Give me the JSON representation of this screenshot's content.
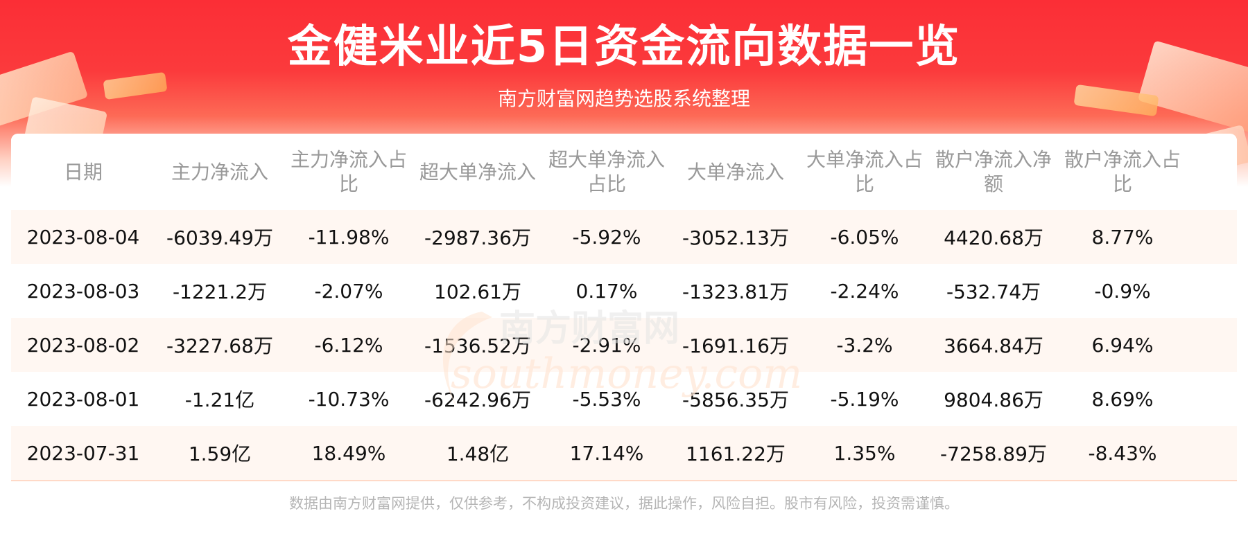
{
  "header": {
    "title": "金健米业近5日资金流向数据一览",
    "subtitle": "南方财富网趋势选股系统整理"
  },
  "table": {
    "columns": [
      "日期",
      "主力净流入",
      "主力净流入占比",
      "超大单净流入",
      "超大单净流入占比",
      "大单净流入",
      "大单净流入占比",
      "散户净流入净额",
      "散户净流入占比"
    ],
    "rows": [
      [
        "2023-08-04",
        "-6039.49万",
        "-11.98%",
        "-2987.36万",
        "-5.92%",
        "-3052.13万",
        "-6.05%",
        "4420.68万",
        "8.77%"
      ],
      [
        "2023-08-03",
        "-1221.2万",
        "-2.07%",
        "102.61万",
        "0.17%",
        "-1323.81万",
        "-2.24%",
        "-532.74万",
        "-0.9%"
      ],
      [
        "2023-08-02",
        "-3227.68万",
        "-6.12%",
        "-1536.52万",
        "-2.91%",
        "-1691.16万",
        "-3.2%",
        "3664.84万",
        "6.94%"
      ],
      [
        "2023-08-01",
        "-1.21亿",
        "-10.73%",
        "-6242.96万",
        "-5.53%",
        "-5856.35万",
        "-5.19%",
        "9804.86万",
        "8.69%"
      ],
      [
        "2023-07-31",
        "1.59亿",
        "18.49%",
        "1.48亿",
        "17.14%",
        "1161.22万",
        "1.35%",
        "-7258.89万",
        "-8.43%"
      ]
    ]
  },
  "watermark": {
    "name": "南方财富网",
    "domain": "southmoney.com"
  },
  "footer": {
    "disclaimer": "数据由南方财富网提供，仅供参考，不构成投资建议，据此操作，风险自担。股市有风险，投资需谨慎。"
  },
  "colors": {
    "banner_red": "#fb2e36",
    "row_alt_bg": "#fff7f2",
    "header_text": "#999999",
    "footer_text": "#b5b5b5"
  }
}
